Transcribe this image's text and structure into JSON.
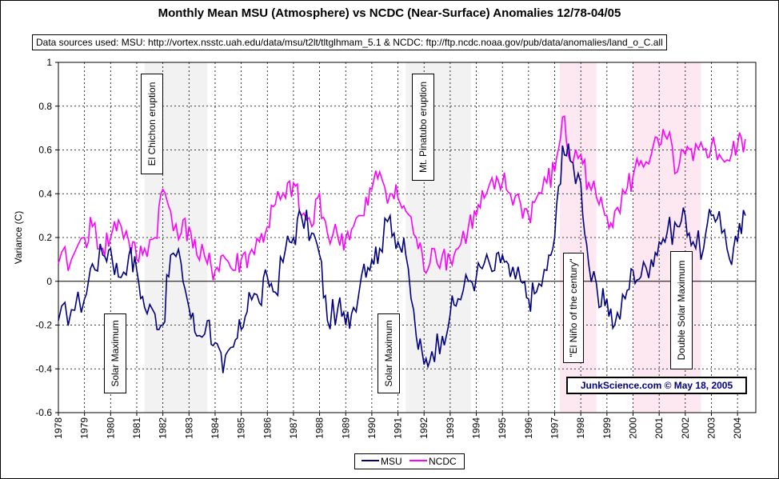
{
  "title": "Monthly Mean MSU (Atmosphere) vs NCDC (Near-Surface) Anomalies 12/78-04/05",
  "sources": "Data sources used: MSU: http://vortex.nsstc.uah.edu/data/msu/t2lt/tltglhmam_5.1 & NCDC: ftp://ftp.ncdc.noaa.gov/pub/data/anomalies/land_o_C.all",
  "stamp": "JunkScience.com ©  May 18, 2005",
  "annotations": {
    "el_chichon": "El Chichon eruption",
    "pinatubo": "Mt. Pinatubo eruption",
    "solar1": "Solar Maximum",
    "solar2": "Solar Maximum",
    "el_nino": "\"El Niño of the century\"",
    "double_solar": "Double Solar Maximum"
  },
  "colors": {
    "msu": "#000080",
    "ncdc": "#ff00ff",
    "shade_gray": "#f2f2f2",
    "shade_pink": "#fde8f2"
  },
  "chart_data": {
    "type": "line",
    "title": "Monthly Mean MSU (Atmosphere) vs NCDC (Near-Surface) Anomalies 12/78-04/05",
    "xlabel": "",
    "ylabel": "Variance (C)",
    "ylim": [
      -0.6,
      1.0
    ],
    "yticks": [
      "-0.6",
      "-0.4",
      "-0.2",
      "0",
      "0.2",
      "0.4",
      "0.6",
      "0.8",
      "1"
    ],
    "xticks": [
      "1978",
      "1979",
      "1980",
      "1981",
      "1982",
      "1983",
      "1984",
      "1985",
      "1986",
      "1987",
      "1988",
      "1989",
      "1990",
      "1991",
      "1992",
      "1993",
      "1994",
      "1995",
      "1996",
      "1997",
      "1998",
      "1999",
      "2000",
      "2001",
      "2002",
      "2003",
      "2004"
    ],
    "grid": true,
    "legend": "bottom",
    "shaded_periods": [
      {
        "start": 1981.3,
        "end": 1983.7,
        "color": "gray"
      },
      {
        "start": 1991.3,
        "end": 1993.8,
        "color": "gray"
      },
      {
        "start": 1997.2,
        "end": 1998.6,
        "color": "pink"
      },
      {
        "start": 2000.0,
        "end": 2002.6,
        "color": "pink"
      }
    ],
    "series": [
      {
        "name": "MSU",
        "x": [
          1978.0,
          1978.5,
          1979.0,
          1979.3,
          1979.7,
          1980.0,
          1980.3,
          1980.7,
          1981.0,
          1981.3,
          1981.7,
          1982.0,
          1982.3,
          1982.7,
          1983.0,
          1983.3,
          1983.7,
          1984.0,
          1984.3,
          1984.7,
          1985.0,
          1985.3,
          1985.7,
          1986.0,
          1986.3,
          1986.7,
          1987.0,
          1987.3,
          1987.7,
          1988.0,
          1988.3,
          1988.7,
          1989.0,
          1989.3,
          1989.7,
          1990.0,
          1990.3,
          1990.7,
          1991.0,
          1991.3,
          1991.7,
          1992.0,
          1992.3,
          1992.7,
          1993.0,
          1993.3,
          1993.7,
          1994.0,
          1994.3,
          1994.7,
          1995.0,
          1995.3,
          1995.7,
          1996.0,
          1996.3,
          1996.7,
          1997.0,
          1997.3,
          1997.6,
          1998.0,
          1998.3,
          1998.7,
          1999.0,
          1999.3,
          1999.7,
          2000.0,
          2000.3,
          2000.7,
          2001.0,
          2001.3,
          2001.7,
          2002.0,
          2002.3,
          2002.7,
          2003.0,
          2003.3,
          2003.7,
          2004.0,
          2004.3
        ],
        "values": [
          -0.18,
          -0.13,
          -0.08,
          0.08,
          0.12,
          0.15,
          0.02,
          0.12,
          0.05,
          -0.12,
          -0.15,
          -0.2,
          0.12,
          0.08,
          -0.12,
          -0.25,
          -0.18,
          -0.28,
          -0.42,
          -0.3,
          -0.22,
          -0.05,
          -0.1,
          0.02,
          -0.05,
          0.15,
          0.2,
          0.3,
          0.22,
          0.12,
          -0.18,
          -0.12,
          -0.2,
          -0.12,
          0.08,
          0.1,
          0.15,
          0.3,
          0.18,
          0.12,
          -0.25,
          -0.38,
          -0.32,
          -0.25,
          -0.15,
          -0.08,
          0.0,
          0.02,
          0.08,
          0.05,
          0.12,
          0.02,
          0.0,
          -0.08,
          -0.05,
          0.05,
          0.2,
          0.62,
          0.55,
          0.45,
          0.08,
          -0.12,
          -0.08,
          -0.2,
          -0.08,
          0.05,
          0.02,
          0.1,
          0.18,
          0.22,
          0.25,
          0.3,
          0.18,
          0.15,
          0.3,
          0.32,
          0.1,
          0.18,
          0.3
        ]
      },
      {
        "name": "NCDC",
        "x": [
          1978.0,
          1978.5,
          1979.0,
          1979.3,
          1979.7,
          1980.0,
          1980.3,
          1980.7,
          1981.0,
          1981.3,
          1981.7,
          1982.0,
          1982.3,
          1982.7,
          1983.0,
          1983.3,
          1983.7,
          1984.0,
          1984.3,
          1984.7,
          1985.0,
          1985.3,
          1985.7,
          1986.0,
          1986.3,
          1986.7,
          1987.0,
          1987.3,
          1987.7,
          1988.0,
          1988.3,
          1988.7,
          1989.0,
          1989.3,
          1989.7,
          1990.0,
          1990.3,
          1990.7,
          1991.0,
          1991.3,
          1991.7,
          1992.0,
          1992.3,
          1992.7,
          1993.0,
          1993.3,
          1993.7,
          1994.0,
          1994.3,
          1994.7,
          1995.0,
          1995.3,
          1995.7,
          1996.0,
          1996.3,
          1996.7,
          1997.0,
          1997.3,
          1997.6,
          1998.0,
          1998.3,
          1998.7,
          1999.0,
          1999.3,
          1999.7,
          2000.0,
          2000.3,
          2000.7,
          2001.0,
          2001.3,
          2001.7,
          2002.0,
          2002.3,
          2002.7,
          2003.0,
          2003.3,
          2003.7,
          2004.0,
          2004.3
        ],
        "values": [
          0.08,
          0.1,
          0.2,
          0.25,
          0.15,
          0.2,
          0.28,
          0.18,
          0.1,
          0.15,
          0.2,
          0.42,
          0.32,
          0.22,
          0.25,
          0.12,
          0.08,
          0.05,
          0.12,
          0.05,
          0.1,
          0.12,
          0.18,
          0.25,
          0.35,
          0.38,
          0.45,
          0.3,
          0.25,
          0.4,
          0.22,
          0.2,
          0.2,
          0.25,
          0.3,
          0.42,
          0.5,
          0.4,
          0.38,
          0.32,
          0.2,
          0.05,
          0.15,
          0.12,
          0.1,
          0.15,
          0.25,
          0.3,
          0.38,
          0.42,
          0.45,
          0.4,
          0.35,
          0.3,
          0.38,
          0.45,
          0.5,
          0.75,
          0.55,
          0.58,
          0.45,
          0.35,
          0.3,
          0.32,
          0.4,
          0.48,
          0.55,
          0.58,
          0.62,
          0.65,
          0.5,
          0.58,
          0.55,
          0.6,
          0.62,
          0.58,
          0.55,
          0.62,
          0.65
        ]
      }
    ]
  }
}
